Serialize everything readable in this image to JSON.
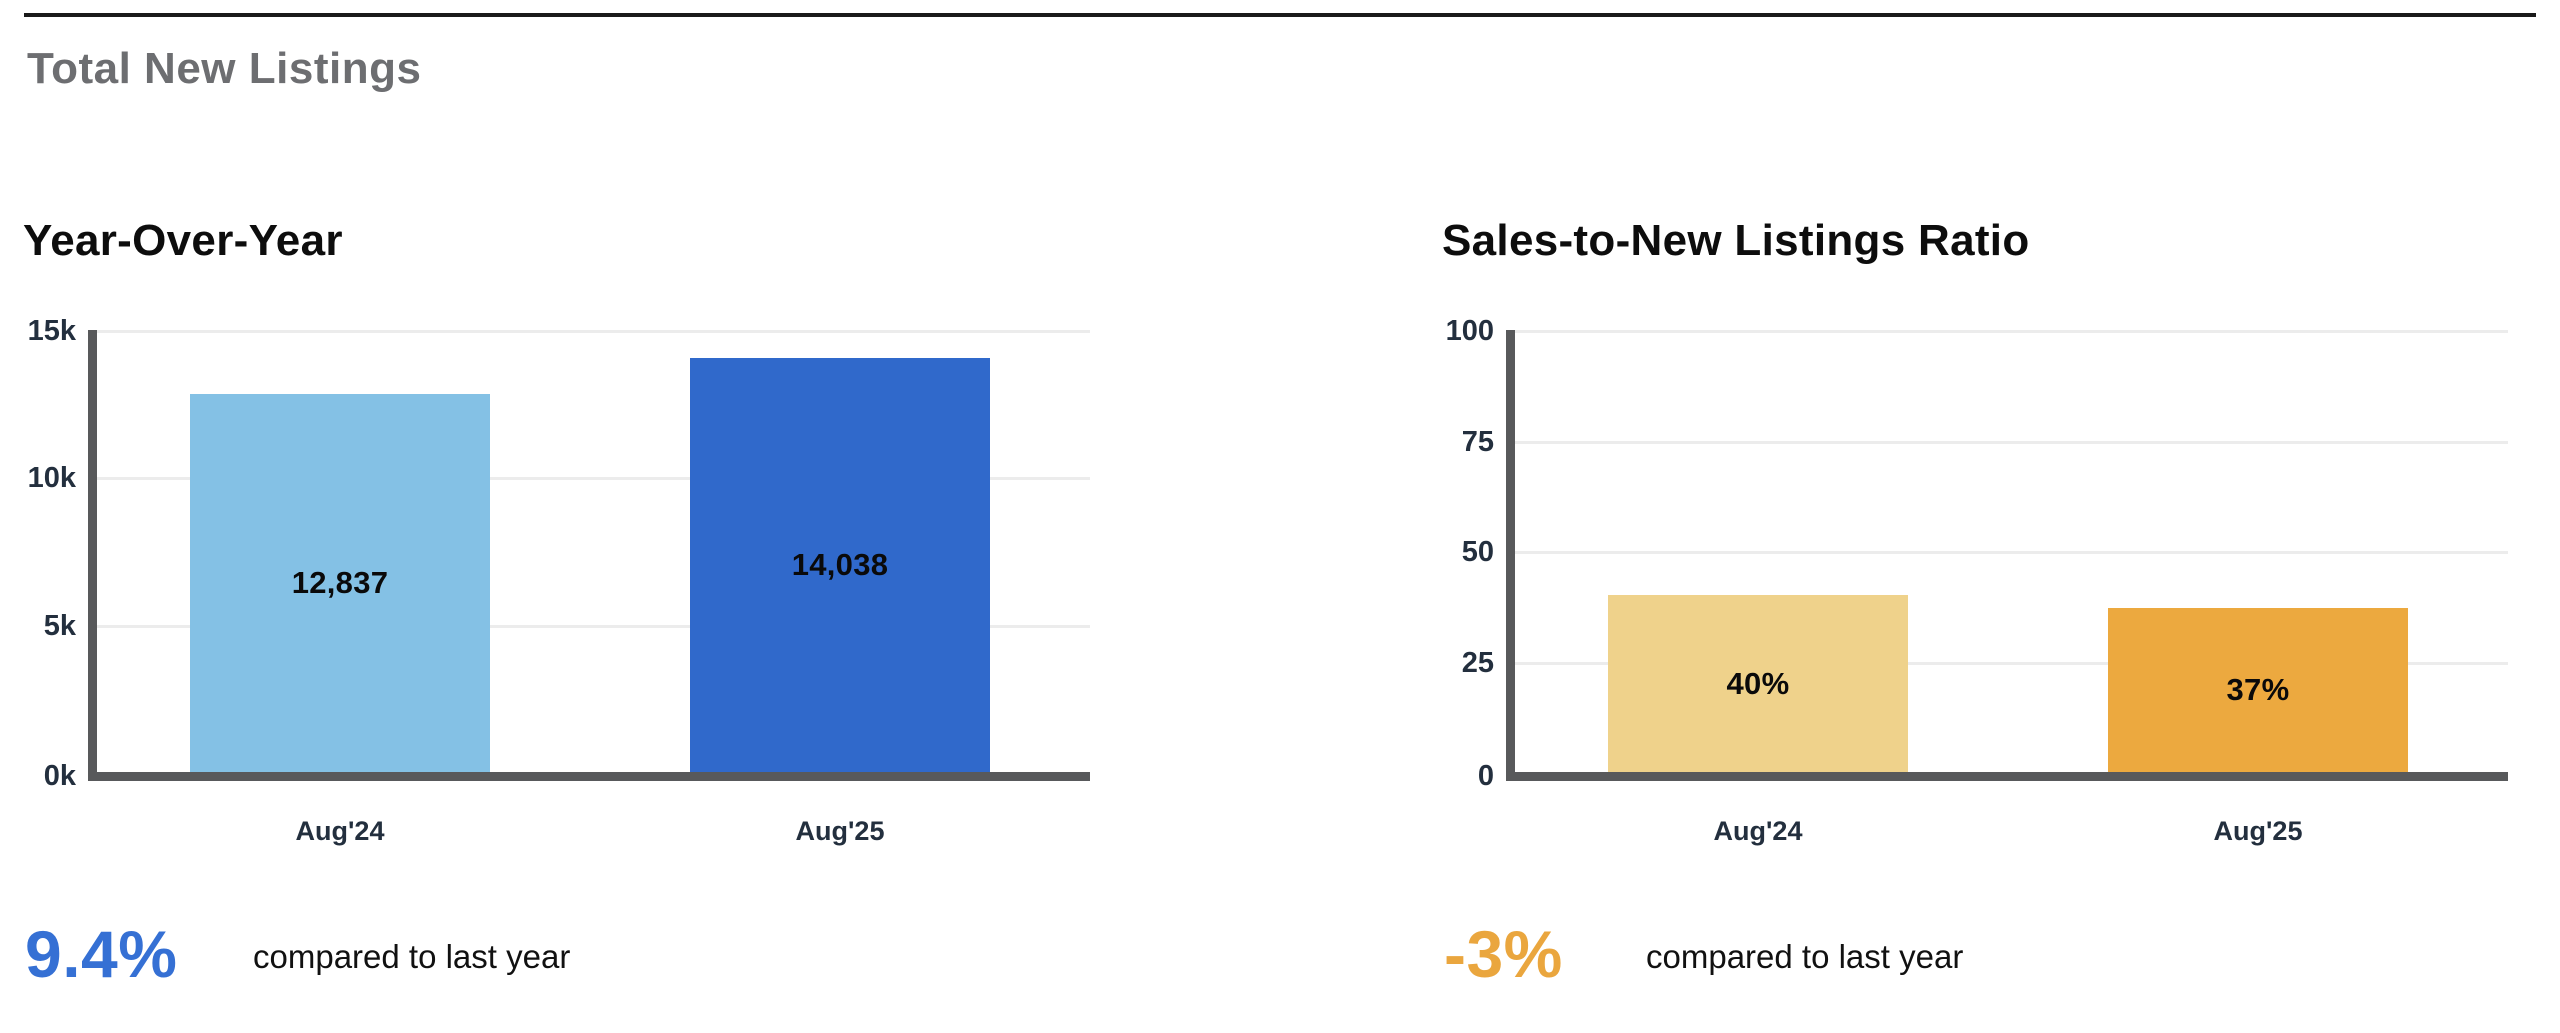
{
  "page": {
    "title": "Total New Listings"
  },
  "chart_data": [
    {
      "type": "bar",
      "title": "Year-Over-Year",
      "categories": [
        "Aug'24",
        "Aug'25"
      ],
      "values": [
        12837,
        14038
      ],
      "value_labels": [
        "12,837",
        "14,038"
      ],
      "ylim": [
        0,
        15000
      ],
      "yticks": [
        {
          "value": 15000,
          "label": "15k"
        },
        {
          "value": 10000,
          "label": "10k"
        },
        {
          "value": 5000,
          "label": "5k"
        },
        {
          "value": 0,
          "label": "0k"
        }
      ],
      "bar_colors": [
        "#84c1e5",
        "#3069cb"
      ],
      "grid": true,
      "legend": "none",
      "summary": {
        "value": "9.4%",
        "color": "#3570d4",
        "note": "compared to last year"
      }
    },
    {
      "type": "bar",
      "title": "Sales-to-New Listings Ratio",
      "categories": [
        "Aug'24",
        "Aug'25"
      ],
      "values": [
        40,
        37
      ],
      "value_labels": [
        "40%",
        "37%"
      ],
      "ylim": [
        0,
        100
      ],
      "yticks": [
        {
          "value": 100,
          "label": "100"
        },
        {
          "value": 75,
          "label": "75"
        },
        {
          "value": 50,
          "label": "50"
        },
        {
          "value": 25,
          "label": "25"
        },
        {
          "value": 0,
          "label": "0"
        }
      ],
      "bar_colors": [
        "#efd28b",
        "#eca93f"
      ],
      "grid": true,
      "legend": "none",
      "summary": {
        "value": "-3%",
        "color": "#eaa63e",
        "note": "compared to last year"
      }
    }
  ],
  "layout_colors": {
    "axis": "#58595b",
    "gridline": "#ececec",
    "tick_text": "#232f3e",
    "section_title": "#6d6e71",
    "chart_title": "#0d0d0d",
    "top_rule": "#1a1a1a"
  }
}
